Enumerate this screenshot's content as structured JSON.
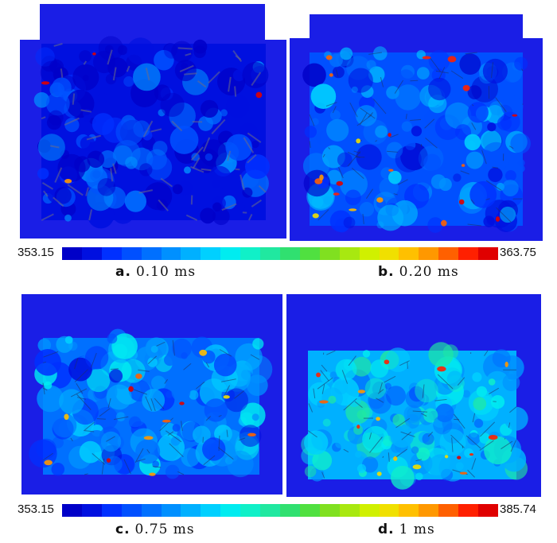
{
  "colors": {
    "frame": "#1a1ee6",
    "field_base": "#1030e8",
    "scale": [
      "#0000c8",
      "#0010e0",
      "#0030ff",
      "#0050ff",
      "#0070ff",
      "#0090ff",
      "#00b0ff",
      "#00d0ff",
      "#00ecf0",
      "#10f0c8",
      "#20e8a0",
      "#30e070",
      "#50e040",
      "#80e020",
      "#a8e810",
      "#d0f000",
      "#f0e000",
      "#ffc000",
      "#ff9800",
      "#ff6000",
      "#ff2000",
      "#e00000"
    ]
  },
  "panels": [
    {
      "id": "a",
      "label": "a.",
      "time": "0.10 ms",
      "level": 0.12,
      "hot": 0.02
    },
    {
      "id": "b",
      "label": "b.",
      "time": "0.20 ms",
      "level": 0.35,
      "hot": 0.1
    },
    {
      "id": "c",
      "label": "c.",
      "time": "0.75 ms",
      "level": 0.45,
      "hot": 0.06
    },
    {
      "id": "d",
      "label": "d.",
      "time": "1 ms",
      "level": 0.62,
      "hot": 0.08
    }
  ],
  "colorbars": [
    {
      "min": "353.15",
      "max": "363.75"
    },
    {
      "min": "353.15",
      "max": "385.74"
    }
  ]
}
